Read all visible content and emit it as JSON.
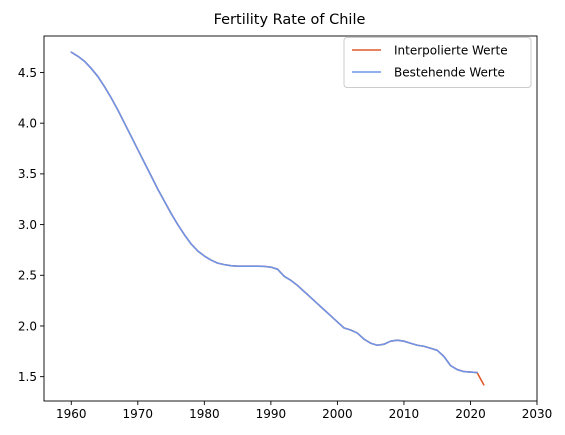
{
  "chart_data": {
    "type": "line",
    "title": "Fertility Rate of Chile",
    "xlabel": "",
    "ylabel": "",
    "xlim": [
      1955.9,
      2030
    ],
    "ylim": [
      1.26,
      4.86
    ],
    "xticks": [
      1960,
      1970,
      1980,
      1990,
      2000,
      2010,
      2020,
      2030
    ],
    "yticks": [
      1.5,
      2.0,
      2.5,
      3.0,
      3.5,
      4.0,
      4.5
    ],
    "ytick_labels": [
      "1.5",
      "2.0",
      "2.5",
      "3.0",
      "3.5",
      "4.0",
      "4.5"
    ],
    "legend_position": "top-right",
    "grid": false,
    "series": [
      {
        "name": "Interpolierte Werte",
        "color": "#e05a2b",
        "x": [
          1960,
          1961,
          1962,
          1963,
          1964,
          1965,
          1966,
          1967,
          1968,
          1969,
          1970,
          1971,
          1972,
          1973,
          1974,
          1975,
          1976,
          1977,
          1978,
          1979,
          1980,
          1981,
          1982,
          1983,
          1984,
          1985,
          1986,
          1987,
          1988,
          1989,
          1990,
          1991,
          1992,
          1993,
          1994,
          1995,
          1996,
          1997,
          1998,
          1999,
          2000,
          2001,
          2002,
          2003,
          2004,
          2005,
          2006,
          2007,
          2008,
          2009,
          2010,
          2011,
          2012,
          2013,
          2014,
          2015,
          2016,
          2017,
          2018,
          2019,
          2020,
          2021,
          2022
        ],
        "values": [
          4.7,
          4.66,
          4.61,
          4.54,
          4.46,
          4.36,
          4.25,
          4.13,
          4.0,
          3.87,
          3.74,
          3.61,
          3.48,
          3.35,
          3.23,
          3.11,
          3.0,
          2.9,
          2.81,
          2.74,
          2.69,
          2.65,
          2.62,
          2.605,
          2.595,
          2.59,
          2.59,
          2.59,
          2.59,
          2.588,
          2.58,
          2.56,
          2.49,
          2.45,
          2.4,
          2.34,
          2.28,
          2.22,
          2.16,
          2.1,
          2.04,
          1.98,
          1.96,
          1.93,
          1.87,
          1.83,
          1.81,
          1.82,
          1.85,
          1.86,
          1.85,
          1.83,
          1.81,
          1.8,
          1.78,
          1.76,
          1.7,
          1.61,
          1.57,
          1.55,
          1.545,
          1.54,
          1.42
        ]
      },
      {
        "name": "Bestehende Werte",
        "color": "#6f95e8",
        "x": [
          1960,
          1961,
          1962,
          1963,
          1964,
          1965,
          1966,
          1967,
          1968,
          1969,
          1970,
          1971,
          1972,
          1973,
          1974,
          1975,
          1976,
          1977,
          1978,
          1979,
          1980,
          1981,
          1982,
          1983,
          1984,
          1985,
          1986,
          1987,
          1988,
          1989,
          1990,
          1991,
          1992,
          1993,
          1994,
          1995,
          1996,
          1997,
          1998,
          1999,
          2000,
          2001,
          2002,
          2003,
          2004,
          2005,
          2006,
          2007,
          2008,
          2009,
          2010,
          2011,
          2012,
          2013,
          2014,
          2015,
          2016,
          2017,
          2018,
          2019,
          2020,
          2021
        ],
        "values": [
          4.7,
          4.66,
          4.61,
          4.54,
          4.46,
          4.36,
          4.25,
          4.13,
          4.0,
          3.87,
          3.74,
          3.61,
          3.48,
          3.35,
          3.23,
          3.11,
          3.0,
          2.9,
          2.81,
          2.74,
          2.69,
          2.65,
          2.62,
          2.605,
          2.595,
          2.59,
          2.59,
          2.59,
          2.59,
          2.588,
          2.58,
          2.56,
          2.49,
          2.45,
          2.4,
          2.34,
          2.28,
          2.22,
          2.16,
          2.1,
          2.04,
          1.98,
          1.96,
          1.93,
          1.87,
          1.83,
          1.81,
          1.82,
          1.85,
          1.86,
          1.85,
          1.83,
          1.81,
          1.8,
          1.78,
          1.76,
          1.7,
          1.61,
          1.57,
          1.55,
          1.545,
          1.54
        ]
      }
    ]
  }
}
